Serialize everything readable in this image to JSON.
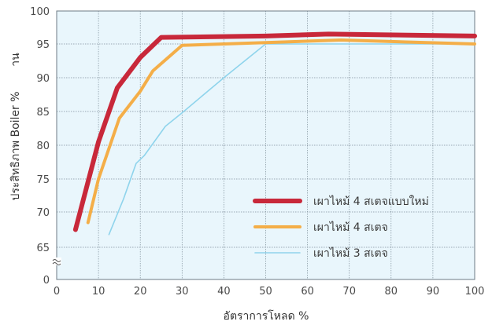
{
  "chart_data": {
    "type": "line",
    "title": "",
    "xlabel": "อัตราการโหลด %",
    "ylabel": "ประสิทธิภาพ Boiler %",
    "ylabel_extra": "าน",
    "xlim": [
      0,
      100
    ],
    "ylim": [
      0,
      100
    ],
    "axis_break": true,
    "x_ticks": [
      "0",
      "10",
      "20",
      "30",
      "40",
      "50",
      "60",
      "70",
      "80",
      "90",
      "100"
    ],
    "y_ticks": [
      "0",
      "65",
      "70",
      "75",
      "80",
      "85",
      "90",
      "95",
      "100"
    ],
    "grid": true,
    "legend_position": "bottom-right",
    "background": "#e9f6fc",
    "series": [
      {
        "name": "เผาไหม้ 4 สเตจแบบใหม่",
        "color": "#c8283a",
        "x": [
          4.5,
          10,
          14.5,
          20,
          25,
          50,
          65,
          100
        ],
        "y": [
          67.5,
          80.5,
          88.5,
          93,
          96,
          96.2,
          96.5,
          96.2
        ]
      },
      {
        "name": "เผาไหม้ 4 สเตจ",
        "color": "#f4ae48",
        "x": [
          7.5,
          10,
          15,
          20,
          23,
          30,
          50,
          68,
          100
        ],
        "y": [
          68.5,
          75,
          84,
          88,
          91,
          94.8,
          95.2,
          95.6,
          95
        ]
      },
      {
        "name": "เผาไหม้ 3 สเตจ",
        "color": "#8fd4ec",
        "x": [
          12.5,
          16,
          19,
          21,
          26,
          30,
          40,
          50,
          70,
          100
        ],
        "y": [
          66.8,
          72,
          77.3,
          78.5,
          82.8,
          84.8,
          90,
          95,
          95,
          95
        ]
      }
    ]
  }
}
